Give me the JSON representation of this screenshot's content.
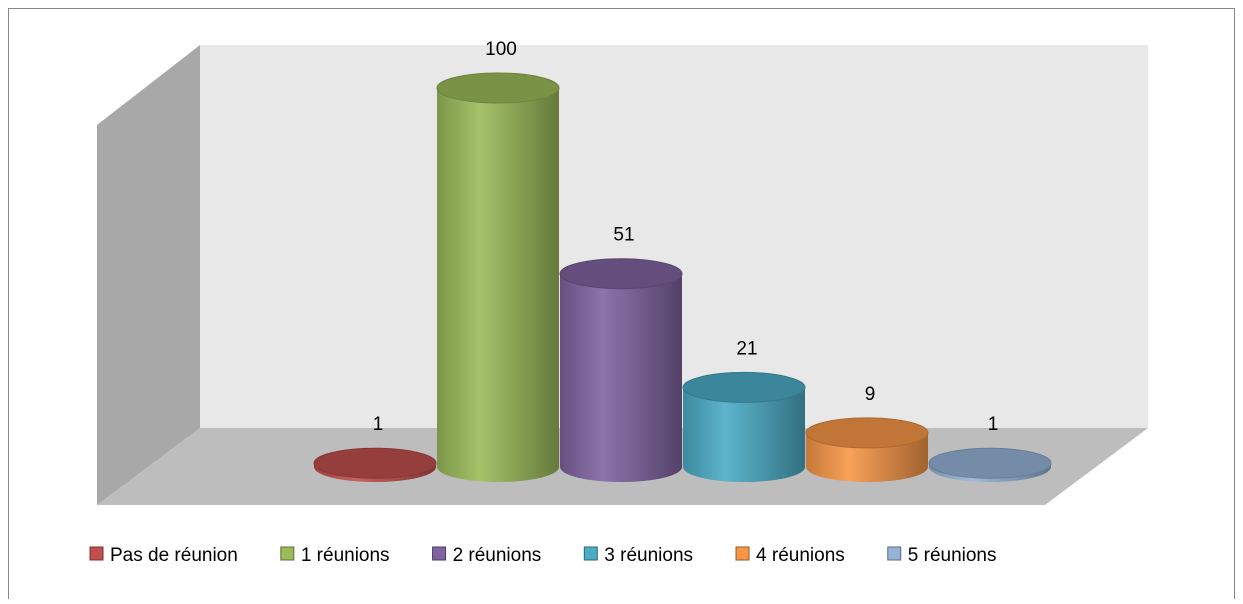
{
  "chart_data": {
    "type": "bar3d",
    "categories": [
      null
    ],
    "series": [
      {
        "name": "Pas de réunion",
        "color": "#c0504d",
        "values": [
          1
        ]
      },
      {
        "name": "1 réunions",
        "color": "#9bbb59",
        "values": [
          100
        ]
      },
      {
        "name": "2 réunions",
        "color": "#8064a2",
        "values": [
          51
        ]
      },
      {
        "name": "3 réunions",
        "color": "#4bacc6",
        "values": [
          21
        ]
      },
      {
        "name": "4 réunions",
        "color": "#f79646",
        "values": [
          9
        ]
      },
      {
        "name": "5 réunions",
        "color": "#95b3d7",
        "values": [
          1
        ]
      }
    ],
    "legend": "bottom"
  }
}
